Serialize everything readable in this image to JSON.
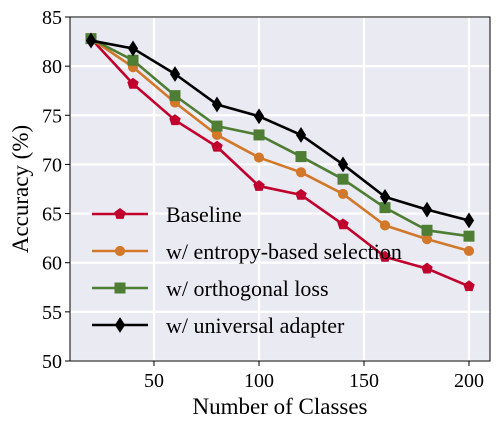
{
  "chart_data": {
    "type": "line",
    "xlabel": "Number of Classes",
    "ylabel": "Accuracy (%)",
    "xlim": [
      10,
      210
    ],
    "ylim": [
      50,
      85
    ],
    "xticks": [
      50,
      100,
      150,
      200
    ],
    "yticks": [
      50,
      55,
      60,
      65,
      70,
      75,
      80,
      85
    ],
    "grid": true,
    "legend_position": "lower-left",
    "x": [
      20,
      40,
      60,
      80,
      100,
      120,
      140,
      160,
      180,
      200
    ],
    "series": [
      {
        "name": "Baseline",
        "color": "#c0002d",
        "marker": "pentagon",
        "values": [
          82.8,
          78.2,
          74.5,
          71.8,
          67.8,
          66.9,
          63.9,
          60.6,
          59.4,
          57.6
        ]
      },
      {
        "name": "w/ entropy-based selection",
        "color": "#d2782a",
        "marker": "circle",
        "values": [
          82.8,
          79.9,
          76.3,
          73.0,
          70.7,
          69.2,
          67.0,
          63.8,
          62.4,
          61.2
        ]
      },
      {
        "name": "w/ orthogonal loss",
        "color": "#4e7d34",
        "marker": "square",
        "values": [
          82.8,
          80.6,
          77.0,
          73.9,
          73.0,
          70.8,
          68.5,
          65.6,
          63.3,
          62.7
        ]
      },
      {
        "name": "w/ universal adapter",
        "color": "#000000",
        "marker": "diamond",
        "values": [
          82.6,
          81.8,
          79.2,
          76.1,
          74.9,
          73.0,
          70.0,
          66.7,
          65.4,
          64.3
        ]
      }
    ]
  }
}
